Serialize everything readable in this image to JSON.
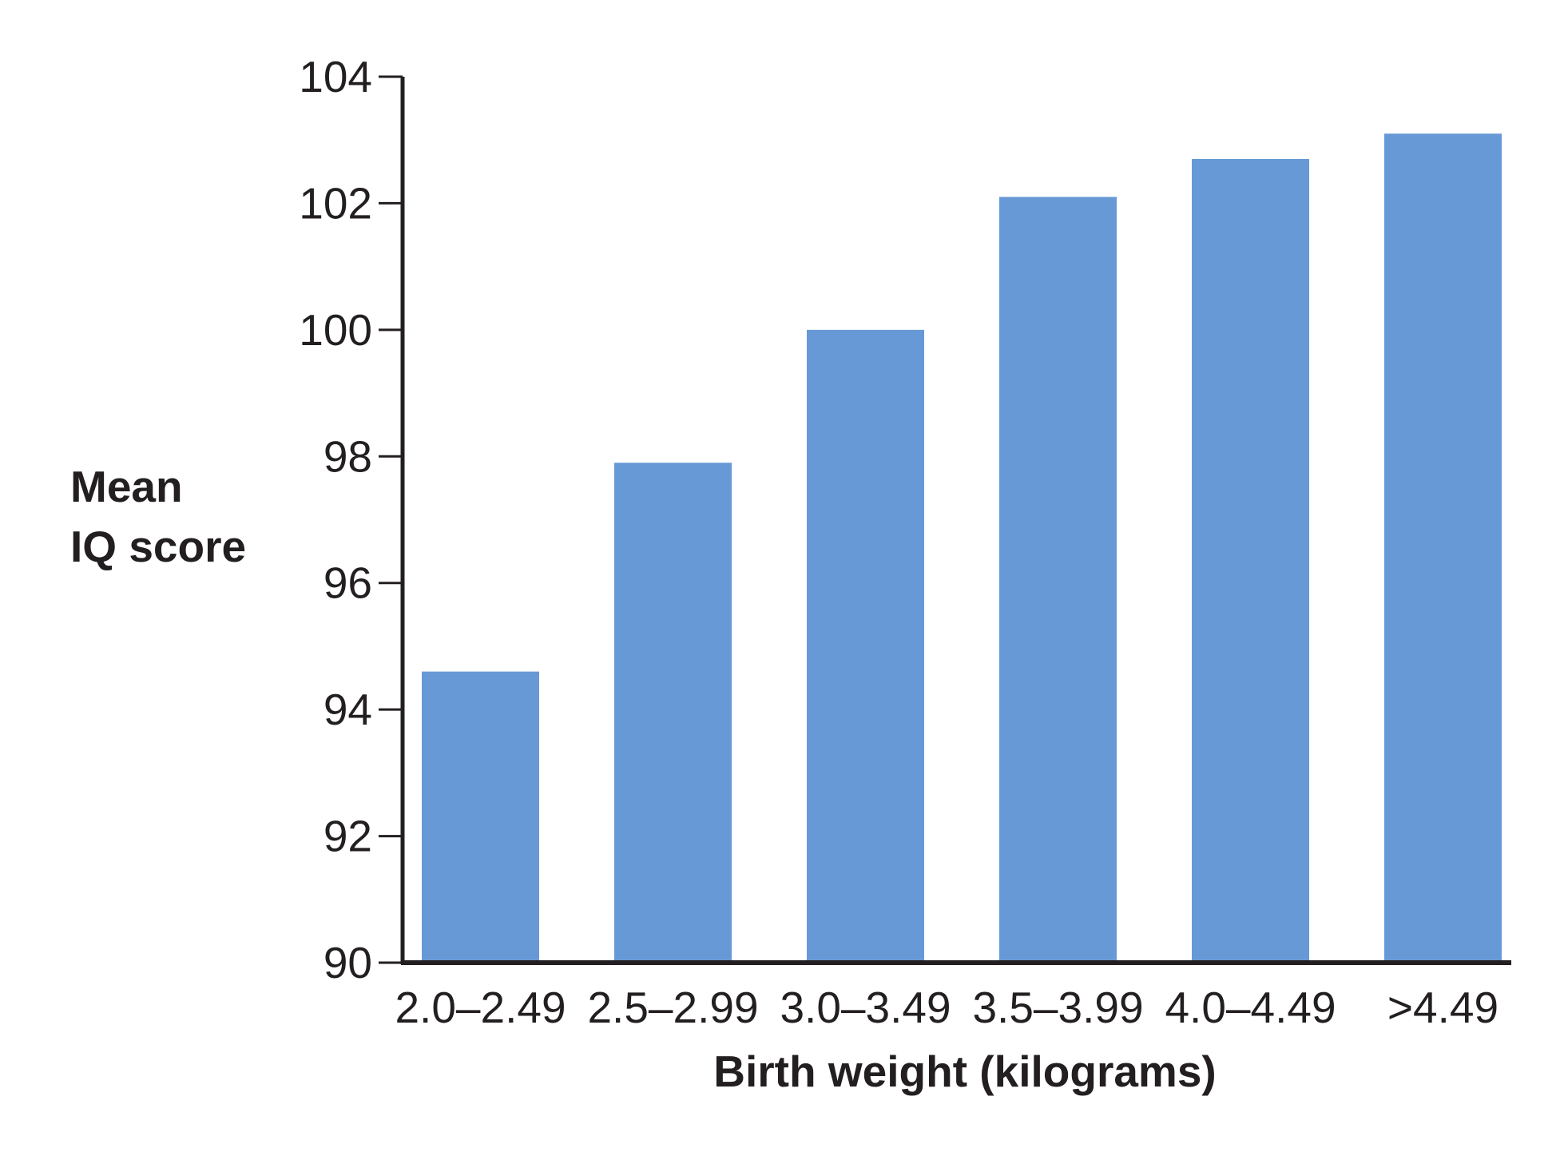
{
  "chart_data": {
    "type": "bar",
    "title": "",
    "xlabel": "Birth weight (kilograms)",
    "ylabel_lines": [
      "Mean",
      "IQ score"
    ],
    "categories": [
      "2.0–2.49",
      "2.5–2.99",
      "3.0–3.49",
      "3.5–3.99",
      "4.0–4.49",
      ">4.49"
    ],
    "values": [
      94.6,
      97.9,
      100.0,
      102.1,
      102.7,
      103.1
    ],
    "ylim": [
      90,
      104
    ],
    "yticks": [
      90,
      92,
      94,
      96,
      98,
      100,
      102,
      104
    ],
    "grid": false,
    "legend": "none",
    "bar_color": "#6699d6",
    "axis_color": "#231f20"
  }
}
